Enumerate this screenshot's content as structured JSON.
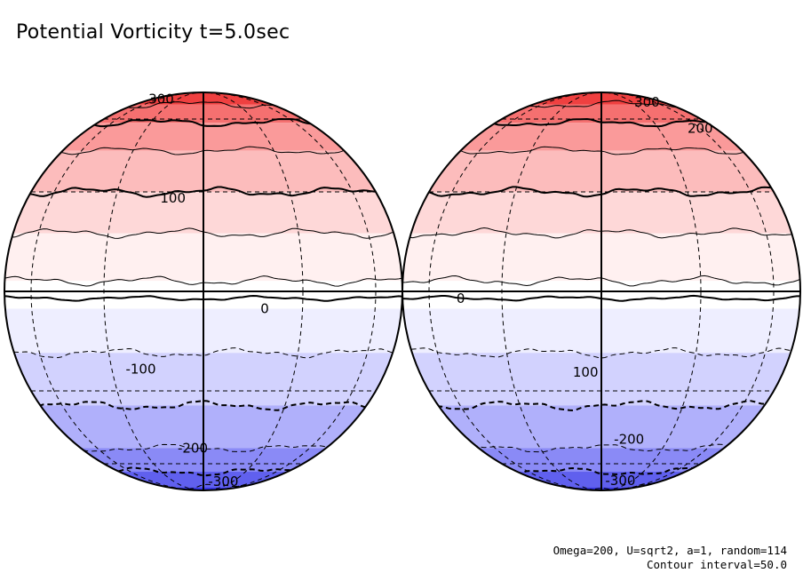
{
  "figure": {
    "title": "Potential Vorticity t=5.0sec",
    "params": "Omega=200, U=sqrt2, a=1, random=114",
    "contour_interval": "Contour interval=50.0"
  },
  "colors": {
    "bands_north_to_south": [
      "#ef4040",
      "#f57070",
      "#fa9a9a",
      "#fcbcbc",
      "#fed8d8",
      "#fff0f0",
      "#ffffff",
      "#eeeeff",
      "#d2d2fe",
      "#b0b0fb",
      "#8a8af6",
      "#6060ee",
      "#3838e8"
    ],
    "line": "#000000"
  },
  "hemispheres": [
    {
      "name": "left",
      "contour_labels": [
        {
          "text": "300",
          "lat": 75,
          "lon": -55
        },
        {
          "text": "100",
          "lat": 28,
          "lon": -10
        },
        {
          "text": "0",
          "lat": -5,
          "lon": 18
        },
        {
          "text": "-100",
          "lat": -23,
          "lon": -20
        },
        {
          "text": "-200",
          "lat": -52,
          "lon": -5
        },
        {
          "text": "-300",
          "lat": -73,
          "lon": 20
        }
      ]
    },
    {
      "name": "right",
      "contour_labels": [
        {
          "text": "300",
          "lat": 72,
          "lon": 48
        },
        {
          "text": "200",
          "lat": 55,
          "lon": 60
        },
        {
          "text": "0",
          "lat": -2,
          "lon": -45
        },
        {
          "text": "100",
          "lat": -24,
          "lon": -5
        },
        {
          "text": "-200",
          "lat": -48,
          "lon": 12
        },
        {
          "text": "-300",
          "lat": -72,
          "lon": 18
        }
      ]
    }
  ]
}
